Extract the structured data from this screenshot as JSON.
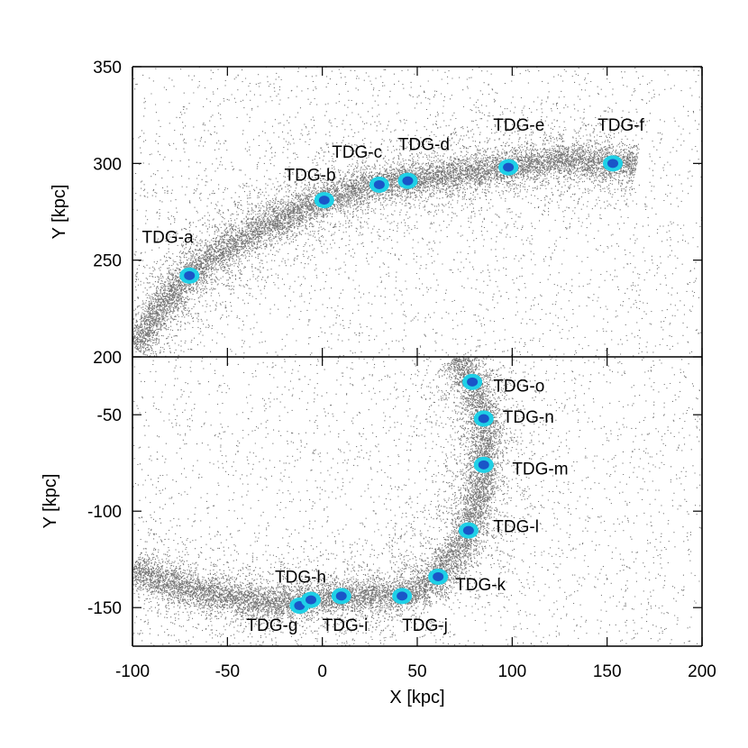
{
  "chart_data": [
    {
      "type": "scatter",
      "panel": "top",
      "xlabel": "",
      "ylabel": "Y [kpc]",
      "xlim": [
        -100,
        200
      ],
      "ylim": [
        200,
        350
      ],
      "xticks": [
        -100,
        -50,
        0,
        50,
        100,
        150,
        200
      ],
      "yticks": [
        200,
        250,
        300,
        350
      ],
      "ytick_labels": [
        "200",
        "250",
        "300",
        "350"
      ],
      "stream_path": [
        [
          -100,
          205
        ],
        [
          -90,
          220
        ],
        [
          -80,
          232
        ],
        [
          -70,
          242
        ],
        [
          -55,
          254
        ],
        [
          -40,
          263
        ],
        [
          -20,
          272
        ],
        [
          0,
          281
        ],
        [
          15,
          286
        ],
        [
          30,
          289
        ],
        [
          45,
          291
        ],
        [
          60,
          293
        ],
        [
          80,
          296
        ],
        [
          98,
          298
        ],
        [
          115,
          301
        ],
        [
          130,
          302
        ],
        [
          153,
          300
        ],
        [
          165,
          298
        ]
      ],
      "stream_width_kpc": 3.5,
      "background_color": "#555555",
      "tdg_color": "#1fd0e6",
      "core_color": "#1a55c8",
      "tdgs": [
        {
          "name": "TDG-a",
          "x": -70,
          "y": 242,
          "label_x": -95,
          "label_y": 259
        },
        {
          "name": "TDG-b",
          "x": 1,
          "y": 281,
          "label_x": -20,
          "label_y": 291
        },
        {
          "name": "TDG-c",
          "x": 30,
          "y": 289,
          "label_x": 5,
          "label_y": 303
        },
        {
          "name": "TDG-d",
          "x": 45,
          "y": 291,
          "label_x": 40,
          "label_y": 307
        },
        {
          "name": "TDG-e",
          "x": 98,
          "y": 298,
          "label_x": 90,
          "label_y": 317
        },
        {
          "name": "TDG-f",
          "x": 153,
          "y": 300,
          "label_x": 145,
          "label_y": 317
        }
      ]
    },
    {
      "type": "scatter",
      "panel": "bottom",
      "xlabel": "X [kpc]",
      "ylabel": "Y [kpc]",
      "xlim": [
        -100,
        200
      ],
      "ylim": [
        -170,
        -20
      ],
      "xticks": [
        -100,
        -50,
        0,
        50,
        100,
        150,
        200
      ],
      "xtick_labels": [
        "-100",
        "-50",
        "0",
        "50",
        "100",
        "150",
        "200"
      ],
      "yticks": [
        -150,
        -100,
        -50
      ],
      "ytick_labels": [
        "-150",
        "-100",
        "-50"
      ],
      "stream_path": [
        [
          -100,
          -130
        ],
        [
          -80,
          -138
        ],
        [
          -60,
          -143
        ],
        [
          -40,
          -146
        ],
        [
          -20,
          -148
        ],
        [
          -8,
          -146
        ],
        [
          10,
          -144
        ],
        [
          25,
          -144
        ],
        [
          42,
          -144
        ],
        [
          55,
          -140
        ],
        [
          62,
          -133
        ],
        [
          70,
          -122
        ],
        [
          77,
          -110
        ],
        [
          82,
          -95
        ],
        [
          85,
          -77
        ],
        [
          86,
          -62
        ],
        [
          86,
          -53
        ],
        [
          83,
          -43
        ],
        [
          78,
          -30
        ],
        [
          70,
          -20
        ]
      ],
      "stream_width_kpc": 3.5,
      "tdgs": [
        {
          "name": "TDG-g",
          "x": -12,
          "y": -149,
          "label_x": -40,
          "label_y": -162
        },
        {
          "name": "TDG-h",
          "x": -6,
          "y": -146,
          "label_x": -25,
          "label_y": -137
        },
        {
          "name": "TDG-i",
          "x": 10,
          "y": -144,
          "label_x": 0,
          "label_y": -162
        },
        {
          "name": "TDG-j",
          "x": 42,
          "y": -144,
          "label_x": 42,
          "label_y": -162
        },
        {
          "name": "TDG-k",
          "x": 61,
          "y": -134,
          "label_x": 70,
          "label_y": -141
        },
        {
          "name": "TDG-l",
          "x": 77,
          "y": -110,
          "label_x": 90,
          "label_y": -111
        },
        {
          "name": "TDG-m",
          "x": 85,
          "y": -76,
          "label_x": 100,
          "label_y": -81
        },
        {
          "name": "TDG-n",
          "x": 85,
          "y": -52,
          "label_x": 95,
          "label_y": -54
        },
        {
          "name": "TDG-o",
          "x": 79,
          "y": -33,
          "label_x": 90,
          "label_y": -38
        }
      ]
    }
  ]
}
